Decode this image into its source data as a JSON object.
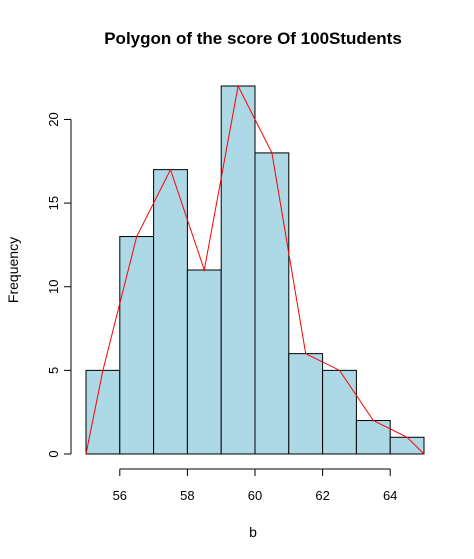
{
  "chart_data": {
    "type": "bar",
    "subtype": "histogram with frequency polygon",
    "title": "Polygon of the score Of 100Students",
    "xlabel": "b",
    "ylabel": "Frequency",
    "bin_edges": [
      55,
      56,
      57,
      58,
      59,
      60,
      61,
      62,
      63,
      64,
      65
    ],
    "values": [
      5,
      13,
      17,
      11,
      22,
      18,
      6,
      5,
      2,
      1
    ],
    "xlim": [
      55,
      65
    ],
    "ylim": [
      0,
      22
    ],
    "x_ticks": [
      56,
      58,
      60,
      62,
      64
    ],
    "y_ticks": [
      0,
      5,
      10,
      15,
      20
    ],
    "grid": false,
    "polygon": {
      "x": [
        55,
        55.5,
        56.5,
        57.5,
        58.5,
        59.5,
        60.5,
        61.5,
        62.5,
        63.5,
        64.5,
        65
      ],
      "y": [
        0,
        5,
        13,
        17,
        11,
        22,
        18,
        6,
        5,
        2,
        1,
        0
      ]
    },
    "colors": {
      "bar_fill": "#ADD8E6",
      "bar_stroke": "#000000",
      "polygon": "#FF0000"
    }
  }
}
